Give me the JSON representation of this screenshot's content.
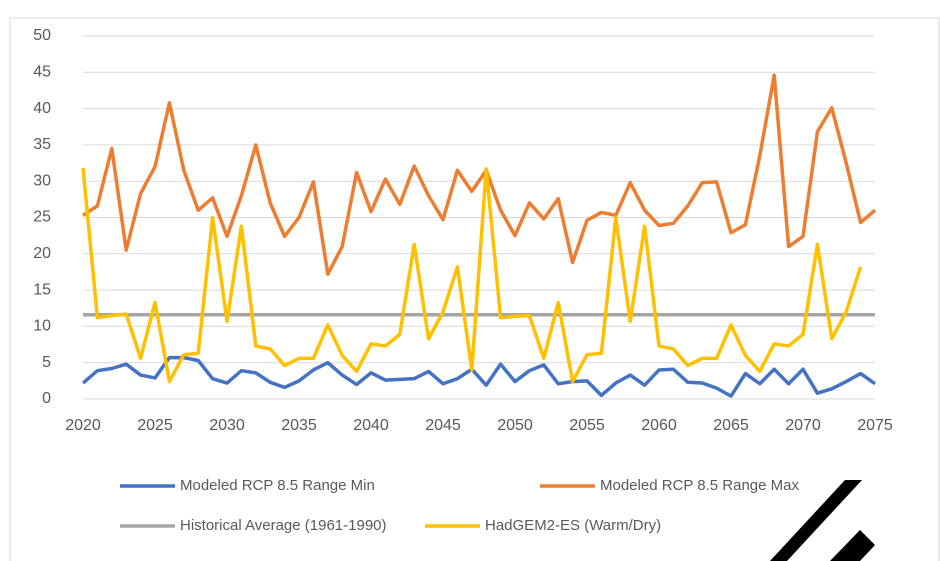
{
  "chart_data": {
    "type": "line",
    "x": [
      2020,
      2021,
      2022,
      2023,
      2024,
      2025,
      2026,
      2027,
      2028,
      2029,
      2030,
      2031,
      2032,
      2033,
      2034,
      2035,
      2036,
      2037,
      2038,
      2039,
      2040,
      2041,
      2042,
      2043,
      2044,
      2045,
      2046,
      2047,
      2048,
      2049,
      2050,
      2051,
      2052,
      2053,
      2054,
      2055,
      2056,
      2057,
      2058,
      2059,
      2060,
      2061,
      2062,
      2063,
      2064,
      2065,
      2066,
      2067,
      2068,
      2069,
      2070,
      2071,
      2072,
      2073,
      2074,
      2075
    ],
    "series": [
      {
        "name": "Modeled RCP 8.5 Range Min",
        "color": "#4472c4",
        "values": [
          2.2,
          3.9,
          4.2,
          4.8,
          3.3,
          2.9,
          5.7,
          5.7,
          5.3,
          2.8,
          2.2,
          3.9,
          3.6,
          2.3,
          1.6,
          2.5,
          4,
          5,
          3.3,
          2,
          3.6,
          2.6,
          2.7,
          2.8,
          3.8,
          2.1,
          2.8,
          4.1,
          1.9,
          4.8,
          2.4,
          3.9,
          4.7,
          2.1,
          2.4,
          2.5,
          0.5,
          2.2,
          3.3,
          1.9,
          4,
          4.1,
          2.3,
          2.2,
          1.5,
          0.4,
          3.5,
          2.1,
          4.1,
          2.1,
          4.1,
          0.8,
          1.4,
          2.4,
          3.5,
          2.1
        ]
      },
      {
        "name": "Modeled RCP 8.5 Range Max",
        "color": "#ed7d31",
        "values": [
          25.3,
          26.6,
          34.5,
          20.5,
          28.3,
          32,
          40.8,
          31.5,
          26,
          27.7,
          22.4,
          28,
          35,
          27,
          22.4,
          25,
          29.9,
          17.2,
          21,
          31.2,
          25.8,
          30.3,
          26.8,
          32.1,
          28,
          24.7,
          31.5,
          28.6,
          31.5,
          26,
          22.5,
          27,
          24.8,
          27.6,
          18.8,
          24.6,
          25.7,
          25.3,
          29.8,
          26,
          23.9,
          24.2,
          26.6,
          29.8,
          29.9,
          22.9,
          24,
          33.5,
          44.6,
          21,
          22.4,
          36.8,
          40.1,
          32.5,
          24.3,
          26
        ]
      },
      {
        "name": "Historical Average (1961-1990)",
        "color": "#a5a5a5",
        "values": [
          11.6,
          11.6,
          11.6,
          11.6,
          11.6,
          11.6,
          11.6,
          11.6,
          11.6,
          11.6,
          11.6,
          11.6,
          11.6,
          11.6,
          11.6,
          11.6,
          11.6,
          11.6,
          11.6,
          11.6,
          11.6,
          11.6,
          11.6,
          11.6,
          11.6,
          11.6,
          11.6,
          11.6,
          11.6,
          11.6,
          11.6,
          11.6,
          11.6,
          11.6,
          11.6,
          11.6,
          11.6,
          11.6,
          11.6,
          11.6,
          11.6,
          11.6,
          11.6,
          11.6,
          11.6,
          11.6,
          11.6,
          11.6,
          11.6,
          11.6,
          11.6,
          11.6,
          11.6,
          11.6,
          11.6,
          11.6
        ]
      },
      {
        "name": "HadGEM2-ES (Warm/Dry)",
        "color": "#ffc000",
        "values": [
          31.8,
          11.2,
          11.5,
          11.7,
          5.6,
          13.3,
          2.4,
          6.1,
          6.3,
          25,
          10.7,
          23.8,
          7.3,
          6.9,
          4.6,
          5.6,
          5.6,
          10.2,
          6,
          3.8,
          7.6,
          7.3,
          8.9,
          21.3,
          8.3,
          12,
          18.2,
          4,
          31.7,
          11.2,
          11.4,
          11.5,
          5.6,
          13.3,
          2.4,
          6.1,
          6.3,
          25,
          10.7,
          23.8,
          7.3,
          6.9,
          4.6,
          5.6,
          5.6,
          10.2,
          6,
          3.8,
          7.6,
          7.3,
          8.9,
          21.3,
          8.3,
          12,
          18.2,
          null
        ]
      }
    ],
    "xlim": [
      2020,
      2075
    ],
    "xticks": [
      2020,
      2025,
      2030,
      2035,
      2040,
      2045,
      2050,
      2055,
      2060,
      2065,
      2070,
      2075
    ],
    "ylim": [
      0,
      50
    ],
    "yticks": [
      0,
      5,
      10,
      15,
      20,
      25,
      30,
      35,
      40,
      45,
      50
    ],
    "grid": true
  }
}
